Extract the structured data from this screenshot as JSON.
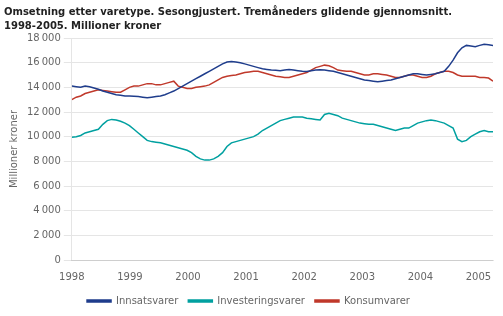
{
  "chart_data": {
    "type": "line",
    "title": "Omsetning etter varetype. Sesongjustert. Tremåneders glidende gjennomsnitt.",
    "subtitle": "1998-2005. Millioner kroner",
    "y_label": "Millioner kroner",
    "x": [
      1998,
      1998.0763,
      1998.1526,
      1998.2289,
      1998.3053,
      1998.3816,
      1998.4579,
      1998.5342,
      1998.6105,
      1998.6868,
      1998.7632,
      1998.8395,
      1998.9158,
      1998.9921,
      1999.0684,
      1999.1447,
      1999.2211,
      1999.2974,
      1999.3737,
      1999.45,
      1999.5263,
      1999.6026,
      1999.6789,
      1999.7553,
      1999.8316,
      1999.9079,
      1999.9842,
      2000.0605,
      2000.1368,
      2000.2132,
      2000.2895,
      2000.3658,
      2000.4421,
      2000.5184,
      2000.5947,
      2000.6711,
      2000.7474,
      2000.8237,
      2000.9,
      2000.9763,
      2001.0526,
      2001.1289,
      2001.2053,
      2001.2816,
      2001.3579,
      2001.4342,
      2001.5105,
      2001.5868,
      2001.6632,
      2001.7395,
      2001.8158,
      2001.8921,
      2001.9684,
      2002.0447,
      2002.1211,
      2002.1974,
      2002.2737,
      2002.35,
      2002.4263,
      2002.5026,
      2002.5789,
      2002.6553,
      2002.7316,
      2002.8079,
      2002.8842,
      2002.9605,
      2003.0368,
      2003.1132,
      2003.1895,
      2003.2658,
      2003.3421,
      2003.4184,
      2003.4947,
      2003.5711,
      2003.6474,
      2003.7237,
      2003.8,
      2003.8763,
      2003.9526,
      2004.0289,
      2004.1053,
      2004.1816,
      2004.2579,
      2004.3342,
      2004.4105,
      2004.4868,
      2004.5632,
      2004.6395,
      2004.7158,
      2004.7921,
      2004.8684,
      2004.9447,
      2005.0211,
      2005.0974,
      2005.1737,
      2005.25
    ],
    "xlim": [
      1998,
      2005.25
    ],
    "xticks": [
      1998,
      1999,
      2000,
      2001,
      2002,
      2003,
      2004,
      2005
    ],
    "ylim": [
      0,
      18000
    ],
    "yticks": [
      0,
      {
        "value": 2000,
        "label": "2 000"
      },
      {
        "value": 4000,
        "label": "4 000"
      },
      {
        "value": 6000,
        "label": "6 000"
      },
      {
        "value": 8000,
        "label": "8 000"
      },
      {
        "value": 10000,
        "label": "10 000"
      },
      {
        "value": 12000,
        "label": "12 000"
      },
      {
        "value": 14000,
        "label": "14 000"
      },
      {
        "value": 16000,
        "label": "16 000"
      },
      {
        "value": 18000,
        "label": "18 000"
      }
    ],
    "grid": "y",
    "legend": "bottom",
    "series": [
      {
        "name": "Innsatsvarer",
        "color": "#1f3d8c",
        "values": [
          14100,
          14050,
          14000,
          14100,
          14050,
          13950,
          13850,
          13700,
          13600,
          13500,
          13400,
          13350,
          13300,
          13300,
          13280,
          13250,
          13200,
          13150,
          13200,
          13250,
          13300,
          13400,
          13550,
          13700,
          13900,
          14100,
          14300,
          14500,
          14700,
          14900,
          15100,
          15300,
          15500,
          15700,
          15900,
          16050,
          16100,
          16050,
          16000,
          15900,
          15800,
          15700,
          15600,
          15500,
          15450,
          15400,
          15380,
          15350,
          15400,
          15450,
          15400,
          15350,
          15300,
          15280,
          15350,
          15400,
          15420,
          15400,
          15350,
          15300,
          15200,
          15100,
          15000,
          14900,
          14800,
          14700,
          14600,
          14550,
          14500,
          14450,
          14500,
          14550,
          14600,
          14700,
          14800,
          14900,
          15000,
          15100,
          15100,
          15050,
          15000,
          15050,
          15100,
          15200,
          15300,
          15700,
          16200,
          16800,
          17200,
          17400,
          17350,
          17300,
          17400,
          17500,
          17450,
          17400
        ]
      },
      {
        "name": "Investeringsvarer",
        "color": "#00a0a0",
        "values": [
          9950,
          10000,
          10100,
          10300,
          10400,
          10500,
          10600,
          11000,
          11300,
          11400,
          11350,
          11250,
          11100,
          10900,
          10600,
          10300,
          10000,
          9700,
          9600,
          9550,
          9500,
          9400,
          9300,
          9200,
          9100,
          9000,
          8900,
          8700,
          8400,
          8200,
          8100,
          8100,
          8200,
          8400,
          8700,
          9200,
          9500,
          9600,
          9700,
          9800,
          9900,
          10000,
          10200,
          10500,
          10700,
          10900,
          11100,
          11300,
          11400,
          11500,
          11600,
          11600,
          11600,
          11500,
          11450,
          11400,
          11350,
          11800,
          11900,
          11800,
          11700,
          11500,
          11400,
          11300,
          11200,
          11100,
          11050,
          11000,
          11000,
          10900,
          10800,
          10700,
          10600,
          10500,
          10600,
          10700,
          10700,
          10900,
          11100,
          11200,
          11300,
          11350,
          11300,
          11200,
          11100,
          10900,
          10700,
          9800,
          9600,
          9700,
          10000,
          10200,
          10400,
          10500,
          10400,
          10400
        ]
      },
      {
        "name": "Konsumvarer",
        "color": "#c0392b",
        "values": [
          13000,
          13200,
          13300,
          13500,
          13600,
          13700,
          13800,
          13750,
          13700,
          13650,
          13600,
          13600,
          13800,
          14000,
          14100,
          14100,
          14200,
          14300,
          14300,
          14200,
          14200,
          14300,
          14400,
          14500,
          14100,
          14000,
          13900,
          13900,
          14000,
          14050,
          14100,
          14200,
          14400,
          14600,
          14800,
          14900,
          14950,
          15000,
          15100,
          15200,
          15250,
          15300,
          15300,
          15200,
          15100,
          15000,
          14900,
          14850,
          14800,
          14800,
          14900,
          15000,
          15100,
          15200,
          15400,
          15600,
          15700,
          15800,
          15750,
          15600,
          15400,
          15350,
          15300,
          15300,
          15200,
          15100,
          15000,
          15000,
          15100,
          15100,
          15050,
          15000,
          14900,
          14800,
          14800,
          14900,
          15000,
          15000,
          14900,
          14800,
          14800,
          14900,
          15100,
          15200,
          15300,
          15300,
          15200,
          15000,
          14900,
          14900,
          14900,
          14900,
          14800,
          14800,
          14750,
          14500
        ]
      }
    ]
  }
}
